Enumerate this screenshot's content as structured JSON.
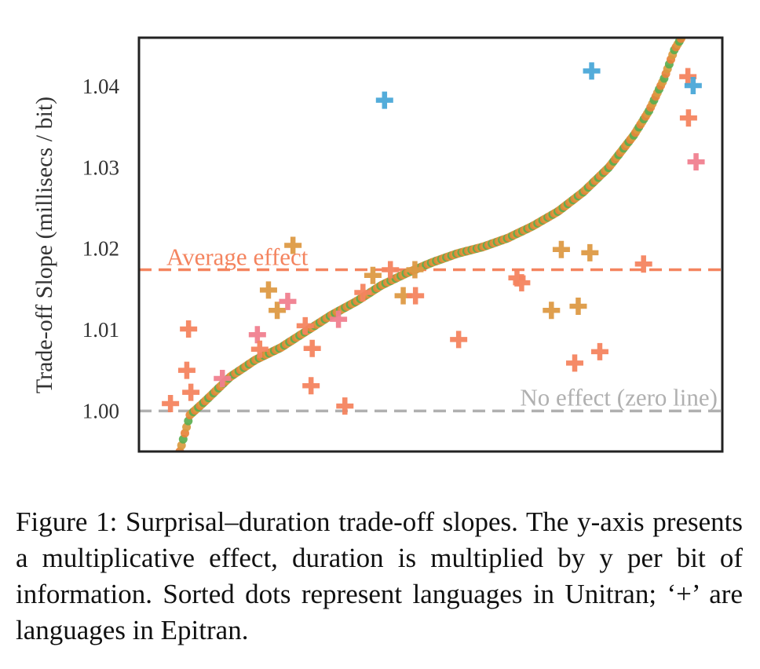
{
  "chart_data": {
    "type": "scatter",
    "ylabel": "Trade-off Slope (millisecs / bit)",
    "ylim": [
      0.995,
      1.046
    ],
    "xlim": [
      0,
      1
    ],
    "yticks": [
      "1.00",
      "1.01",
      "1.02",
      "1.03",
      "1.04"
    ],
    "grid": false,
    "colors": {
      "axis": "#222222",
      "average": "#f4845f",
      "zero": "#b0b0b0"
    },
    "reference_lines": [
      {
        "name": "average",
        "label": "Average effect",
        "y": 1.0174,
        "color": "#f4845f"
      },
      {
        "name": "zero",
        "label": "No effect (zero line)",
        "y": 1.0,
        "color": "#b0b0b0"
      }
    ],
    "series": [
      {
        "name": "Unitran",
        "marker": "dot",
        "description_in_caption": "Sorted dots represent languages in Unitran",
        "n_points": 300,
        "sorted_quantile_y": {
          "u": [
            0.0,
            0.02,
            0.05,
            0.1,
            0.15,
            0.2,
            0.25,
            0.3,
            0.35,
            0.4,
            0.45,
            0.5,
            0.55,
            0.6,
            0.65,
            0.7,
            0.75,
            0.8,
            0.85,
            0.9,
            0.93,
            0.96,
            0.98,
            1.0
          ],
          "y": [
            0.995,
            0.9995,
            1.0012,
            1.0042,
            1.0063,
            1.0078,
            1.0098,
            1.0118,
            1.0135,
            1.0155,
            1.017,
            1.0183,
            1.0194,
            1.0202,
            1.0213,
            1.0228,
            1.0246,
            1.027,
            1.03,
            1.034,
            1.037,
            1.041,
            1.0445,
            1.0466
          ]
        },
        "palette": [
          "#e8833a",
          "#d99a3f",
          "#5aae4f",
          "#f07f7f",
          "#cda43a",
          "#8aa84a",
          "#4aa8d8"
        ]
      },
      {
        "name": "Epitran",
        "marker": "plus",
        "description_in_caption": "'+' are languages in Epitran",
        "points": [
          {
            "x": 0.054,
            "y": 1.0009,
            "color": "#f4845f"
          },
          {
            "x": 0.085,
            "y": 1.0101,
            "color": "#f4845f"
          },
          {
            "x": 0.082,
            "y": 1.005,
            "color": "#f4845f"
          },
          {
            "x": 0.089,
            "y": 1.0023,
            "color": "#f4845f"
          },
          {
            "x": 0.143,
            "y": 1.004,
            "color": "#f07f8f"
          },
          {
            "x": 0.203,
            "y": 1.0094,
            "color": "#f07f8f"
          },
          {
            "x": 0.207,
            "y": 1.0076,
            "color": "#f4845f"
          },
          {
            "x": 0.222,
            "y": 1.0149,
            "color": "#dd9a44"
          },
          {
            "x": 0.237,
            "y": 1.0124,
            "color": "#dd9a44"
          },
          {
            "x": 0.255,
            "y": 1.0135,
            "color": "#f07f8f"
          },
          {
            "x": 0.264,
            "y": 1.0204,
            "color": "#dd9a44"
          },
          {
            "x": 0.285,
            "y": 1.0105,
            "color": "#f4845f"
          },
          {
            "x": 0.297,
            "y": 1.0077,
            "color": "#f4845f"
          },
          {
            "x": 0.295,
            "y": 1.0031,
            "color": "#f4845f"
          },
          {
            "x": 0.342,
            "y": 1.0113,
            "color": "#f07f8f"
          },
          {
            "x": 0.353,
            "y": 1.0006,
            "color": "#f4845f"
          },
          {
            "x": 0.384,
            "y": 1.0146,
            "color": "#f4845f"
          },
          {
            "x": 0.401,
            "y": 1.0167,
            "color": "#dd9a44"
          },
          {
            "x": 0.421,
            "y": 1.0383,
            "color": "#4aa8d8"
          },
          {
            "x": 0.431,
            "y": 1.0174,
            "color": "#f4845f"
          },
          {
            "x": 0.453,
            "y": 1.0142,
            "color": "#dd9a44"
          },
          {
            "x": 0.474,
            "y": 1.0142,
            "color": "#f4845f"
          },
          {
            "x": 0.473,
            "y": 1.0174,
            "color": "#dd9a44"
          },
          {
            "x": 0.548,
            "y": 1.0088,
            "color": "#f4845f"
          },
          {
            "x": 0.648,
            "y": 1.0164,
            "color": "#f4845f"
          },
          {
            "x": 0.656,
            "y": 1.0158,
            "color": "#f4845f"
          },
          {
            "x": 0.707,
            "y": 1.0124,
            "color": "#dd9a44"
          },
          {
            "x": 0.724,
            "y": 1.0199,
            "color": "#dd9a44"
          },
          {
            "x": 0.747,
            "y": 1.0059,
            "color": "#f4845f"
          },
          {
            "x": 0.753,
            "y": 1.0129,
            "color": "#dd9a44"
          },
          {
            "x": 0.773,
            "y": 1.0195,
            "color": "#dd9a44"
          },
          {
            "x": 0.776,
            "y": 1.0419,
            "color": "#4aa8d8"
          },
          {
            "x": 0.79,
            "y": 1.0073,
            "color": "#f4845f"
          },
          {
            "x": 0.865,
            "y": 1.0181,
            "color": "#f4845f"
          },
          {
            "x": 0.941,
            "y": 1.0412,
            "color": "#f4845f"
          },
          {
            "x": 0.95,
            "y": 1.0401,
            "color": "#4aa8d8"
          },
          {
            "x": 0.942,
            "y": 1.0361,
            "color": "#f4845f"
          },
          {
            "x": 0.955,
            "y": 1.0307,
            "color": "#f07f8f"
          }
        ]
      }
    ]
  },
  "caption": "Figure 1: Surprisal–duration trade-off slopes. The y-axis presents a multiplicative effect, duration is multiplied by y per bit of information. Sorted dots represent languages in Unitran; ‘+’ are languages in Epitran."
}
